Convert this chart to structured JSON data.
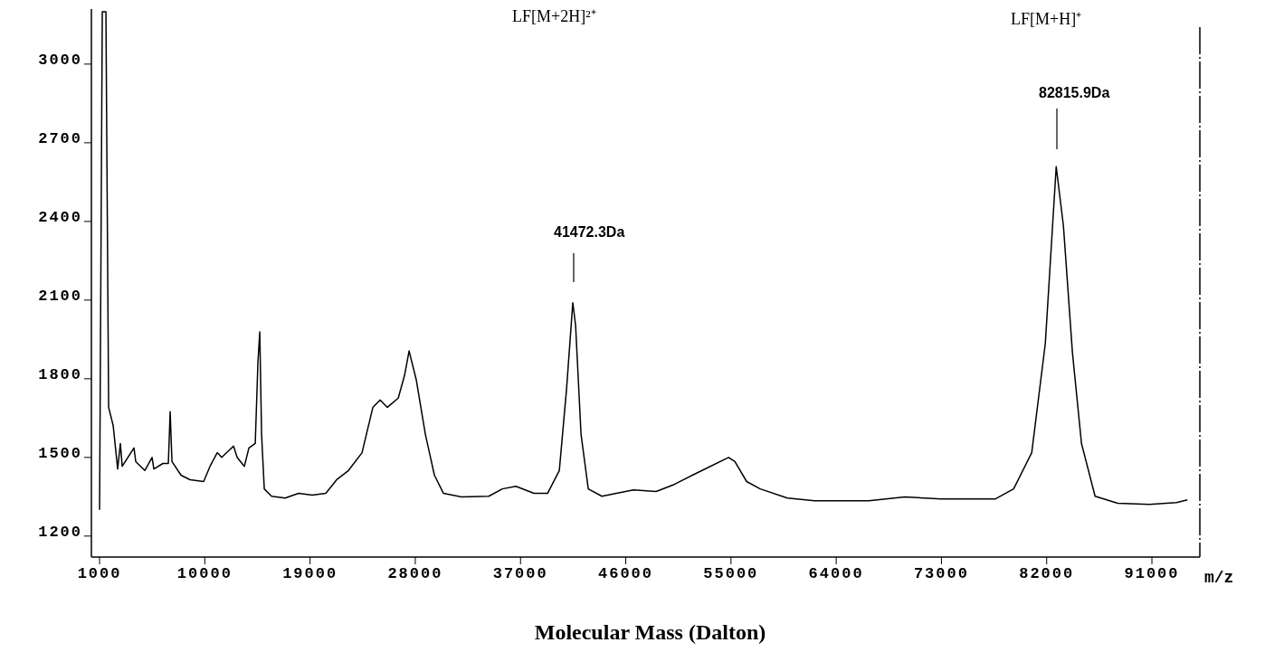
{
  "chart_data": {
    "type": "line",
    "xlabel": "Molecular Mass (Dalton)",
    "xlim": [
      300,
      95100
    ],
    "xticks": [
      1000,
      10000,
      19000,
      28000,
      37000,
      46000,
      55000,
      64000,
      73000,
      82000,
      91000
    ],
    "ylim": [
      1120,
      3210
    ],
    "yticks": [
      1200,
      1500,
      1800,
      2100,
      2400,
      2700,
      3000
    ],
    "grid": false,
    "marker": "none",
    "line_style": "solid",
    "annotations": [
      "41472.3Da",
      "LF[M+2H]²⁺",
      "82815.9Da",
      "LF[M+H]⁺",
      "m/z"
    ],
    "series": [
      {
        "color": "#000000",
        "x": [
          1000,
          1232,
          1542,
          1774,
          2161,
          2548,
          2780,
          2935,
          3941,
          4096,
          4870,
          5489,
          5644,
          6418,
          6882,
          7037,
          7192,
          7966,
          8740,
          9901,
          10443,
          11062,
          11449,
          12455,
          12765,
          13384,
          13771,
          14313,
          14545,
          14700,
          14855,
          15087,
          15706,
          16867,
          18028,
          19189,
          20350,
          21279,
          22285,
          23446,
          24375,
          24994,
          25613,
          26542,
          27084,
          27471,
          28090,
          28864,
          29638,
          30412,
          31960,
          34282,
          35443,
          36604,
          38152,
          39313,
          40319,
          40938,
          41472,
          41713,
          42177,
          42796,
          43957,
          46666,
          48601,
          50149,
          51697,
          54793,
          55335,
          56341,
          57502,
          59824,
          62146,
          66790,
          69886,
          72982,
          77626,
          79174,
          80722,
          81883,
          82816,
          83431,
          84205,
          84979,
          86140,
          88075,
          90784,
          93106,
          94035
        ],
        "values": [
          1300,
          3200,
          3200,
          1691,
          1622,
          1456,
          1553,
          1466,
          1536,
          1484,
          1450,
          1500,
          1456,
          1477,
          1477,
          1674,
          1484,
          1432,
          1415,
          1408,
          1466,
          1518,
          1500,
          1543,
          1500,
          1466,
          1536,
          1553,
          1865,
          1979,
          1588,
          1380,
          1352,
          1345,
          1363,
          1356,
          1363,
          1415,
          1450,
          1518,
          1691,
          1719,
          1691,
          1726,
          1813,
          1906,
          1795,
          1588,
          1432,
          1363,
          1349,
          1352,
          1380,
          1390,
          1363,
          1363,
          1450,
          1761,
          2090,
          2003,
          1588,
          1380,
          1352,
          1376,
          1370,
          1397,
          1432,
          1500,
          1484,
          1408,
          1380,
          1345,
          1335,
          1335,
          1349,
          1342,
          1342,
          1380,
          1518,
          1934,
          2609,
          2384,
          1899,
          1553,
          1352,
          1325,
          1321,
          1328,
          1338
        ]
      }
    ]
  }
}
